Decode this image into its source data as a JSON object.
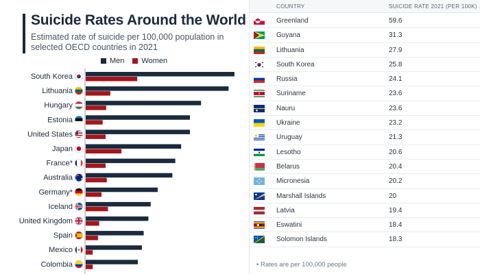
{
  "chart": {
    "title": "Suicide Rates Around the World",
    "subtitle": "Estimated rate of suicide per 100,000 population in selected OECD countries in 2021",
    "legend": {
      "men": "Men",
      "women": "Women"
    },
    "colors": {
      "men": "#1b2a3d",
      "women": "#a3161c",
      "accent": "#1b2a3d"
    }
  },
  "chart_data": {
    "type": "bar",
    "orientation": "horizontal",
    "title": "Suicide Rates Around the World",
    "xlabel": "",
    "ylabel": "",
    "xlim": [
      0,
      26
    ],
    "categories": [
      "South Korea",
      "Lithuania",
      "Hungary",
      "Estonia",
      "United States",
      "Japan",
      "France*",
      "Australia",
      "Germany*",
      "Iceland",
      "United Kingdom",
      "Spain",
      "Mexico",
      "Colombia"
    ],
    "flags": [
      "flag-south-korea-icon",
      "flag-lithuania-icon",
      "flag-hungary-icon",
      "flag-estonia-icon",
      "flag-united-states-icon",
      "flag-japan-icon",
      "flag-france-icon",
      "flag-australia-icon",
      "flag-germany-icon",
      "flag-iceland-icon",
      "flag-united-kingdom-icon",
      "flag-spain-icon",
      "flag-mexico-icon",
      "flag-colombia-icon"
    ],
    "series": [
      {
        "name": "Men",
        "values": [
          25.4,
          24.4,
          19.7,
          17.8,
          17.8,
          16.3,
          15.3,
          14.8,
          12.3,
          11.1,
          10.7,
          9.9,
          9.6,
          8.9
        ]
      },
      {
        "name": "Women",
        "values": [
          8.8,
          4.2,
          3.5,
          2.9,
          3.4,
          6.1,
          3.4,
          3.6,
          2.7,
          3.8,
          2.3,
          2.1,
          1.2,
          1.2
        ]
      }
    ]
  },
  "table": {
    "header": {
      "country": "COUNTRY",
      "rate": "SUICIDE RATE 2021 (PER 100K) ↓"
    },
    "rows": [
      {
        "country": "Greenland",
        "rate": "59.6",
        "flag": "flag-greenland-icon"
      },
      {
        "country": "Guyana",
        "rate": "31.3",
        "flag": "flag-guyana-icon"
      },
      {
        "country": "Lithuania",
        "rate": "27.9",
        "flag": "flag-lithuania-icon"
      },
      {
        "country": "South Korea",
        "rate": "25.8",
        "flag": "flag-south-korea-icon"
      },
      {
        "country": "Russia",
        "rate": "24.1",
        "flag": "flag-russia-icon"
      },
      {
        "country": "Suriname",
        "rate": "23.6",
        "flag": "flag-suriname-icon"
      },
      {
        "country": "Nauru",
        "rate": "23.6",
        "flag": "flag-nauru-icon"
      },
      {
        "country": "Ukraine",
        "rate": "23.2",
        "flag": "flag-ukraine-icon"
      },
      {
        "country": "Uruguay",
        "rate": "21.3",
        "flag": "flag-uruguay-icon"
      },
      {
        "country": "Lesotho",
        "rate": "20.6",
        "flag": "flag-lesotho-icon"
      },
      {
        "country": "Belarus",
        "rate": "20.4",
        "flag": "flag-belarus-icon"
      },
      {
        "country": "Micronesia",
        "rate": "20.2",
        "flag": "flag-micronesia-icon"
      },
      {
        "country": "Marshall Islands",
        "rate": "20",
        "flag": "flag-marshall-islands-icon"
      },
      {
        "country": "Latvia",
        "rate": "19.4",
        "flag": "flag-latvia-icon"
      },
      {
        "country": "Eswatini",
        "rate": "18.4",
        "flag": "flag-eswatini-icon"
      },
      {
        "country": "Solomon Islands",
        "rate": "18.3",
        "flag": "flag-solomon-islands-icon"
      }
    ],
    "footnote": "Rates are per 100,000 people"
  }
}
